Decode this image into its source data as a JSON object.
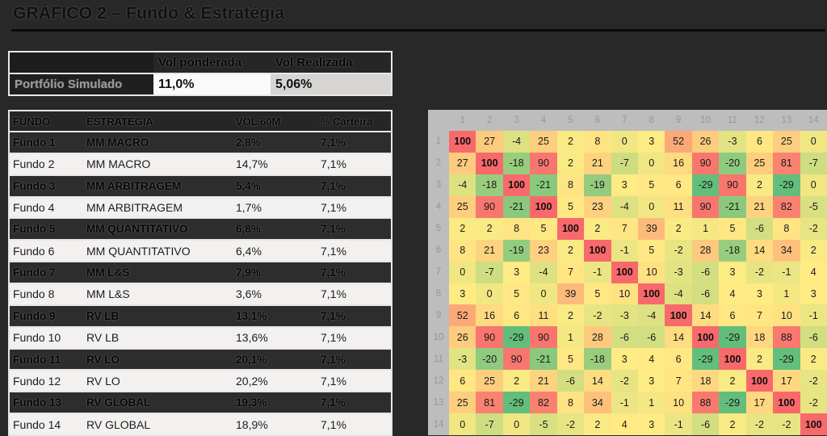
{
  "title": "GRÁFICO 2 – Fundo & Estratégia",
  "summary_table": {
    "columns": [
      "Vol ponderada",
      "Vol Realizada"
    ],
    "rows": [
      {
        "label": "Portfólio Simulado",
        "vol_ponderada": "11,0%",
        "vol_realizada": "5,06%"
      }
    ]
  },
  "funds_table": {
    "columns": [
      "FUNDO",
      "ESTRATÉGIA",
      "VOL 60M",
      "% Carteira"
    ],
    "rows": [
      {
        "fundo": "Fundo 1",
        "estrategia": "MM MACRO",
        "vol_60m": "2,8%",
        "pct_carteira": "7,1%"
      },
      {
        "fundo": "Fundo 2",
        "estrategia": "MM MACRO",
        "vol_60m": "14,7%",
        "pct_carteira": "7,1%"
      },
      {
        "fundo": "Fundo 3",
        "estrategia": "MM ARBITRAGEM",
        "vol_60m": "5,4%",
        "pct_carteira": "7,1%"
      },
      {
        "fundo": "Fundo 4",
        "estrategia": "MM ARBITRAGEM",
        "vol_60m": "1,7%",
        "pct_carteira": "7,1%"
      },
      {
        "fundo": "Fundo 5",
        "estrategia": "MM QUANTITATIVO",
        "vol_60m": "6,8%",
        "pct_carteira": "7,1%"
      },
      {
        "fundo": "Fundo 6",
        "estrategia": "MM QUANTITATIVO",
        "vol_60m": "6,4%",
        "pct_carteira": "7,1%"
      },
      {
        "fundo": "Fundo 7",
        "estrategia": "MM L&S",
        "vol_60m": "7,9%",
        "pct_carteira": "7,1%"
      },
      {
        "fundo": "Fundo 8",
        "estrategia": "MM L&S",
        "vol_60m": "3,6%",
        "pct_carteira": "7,1%"
      },
      {
        "fundo": "Fundo 9",
        "estrategia": "RV LB",
        "vol_60m": "13,1%",
        "pct_carteira": "7,1%"
      },
      {
        "fundo": "Fundo 10",
        "estrategia": "RV LB",
        "vol_60m": "13,6%",
        "pct_carteira": "7,1%"
      },
      {
        "fundo": "Fundo 11",
        "estrategia": "RV LO",
        "vol_60m": "20,1%",
        "pct_carteira": "7,1%"
      },
      {
        "fundo": "Fundo 12",
        "estrategia": "RV LO",
        "vol_60m": "20,2%",
        "pct_carteira": "7,1%"
      },
      {
        "fundo": "Fundo 13",
        "estrategia": "RV GLOBAL",
        "vol_60m": "19,3%",
        "pct_carteira": "7,1%"
      },
      {
        "fundo": "Fundo 14",
        "estrategia": "RV GLOBAL",
        "vol_60m": "18,9%",
        "pct_carteira": "7,1%"
      }
    ]
  },
  "chart_data": {
    "type": "heatmap",
    "title": "",
    "x_labels": [
      "1",
      "2",
      "3",
      "4",
      "5",
      "6",
      "7",
      "8",
      "9",
      "10",
      "11",
      "12",
      "13",
      "14"
    ],
    "y_labels": [
      "1",
      "2",
      "3",
      "4",
      "5",
      "6",
      "7",
      "8",
      "9",
      "10",
      "11",
      "12",
      "13",
      "14"
    ],
    "matrix": [
      [
        100,
        27,
        -4,
        25,
        2,
        8,
        0,
        3,
        52,
        26,
        -3,
        6,
        25,
        0
      ],
      [
        27,
        100,
        -18,
        90,
        2,
        21,
        -7,
        0,
        16,
        90,
        -20,
        25,
        81,
        -7
      ],
      [
        -4,
        -18,
        100,
        -21,
        8,
        -19,
        3,
        5,
        6,
        -29,
        90,
        2,
        -29,
        0
      ],
      [
        25,
        90,
        -21,
        100,
        5,
        23,
        -4,
        0,
        11,
        90,
        -21,
        21,
        82,
        -5
      ],
      [
        2,
        2,
        8,
        5,
        100,
        2,
        7,
        39,
        2,
        1,
        5,
        -6,
        8,
        -2
      ],
      [
        8,
        21,
        -19,
        23,
        2,
        100,
        -1,
        5,
        -2,
        28,
        -18,
        14,
        34,
        2
      ],
      [
        0,
        -7,
        3,
        -4,
        7,
        -1,
        100,
        10,
        -3,
        -6,
        3,
        -2,
        -1,
        4
      ],
      [
        3,
        0,
        5,
        0,
        39,
        5,
        10,
        100,
        -4,
        -6,
        4,
        3,
        1,
        3
      ],
      [
        52,
        16,
        6,
        11,
        2,
        -2,
        -3,
        -4,
        100,
        14,
        6,
        7,
        10,
        -1
      ],
      [
        26,
        90,
        -29,
        90,
        1,
        28,
        -6,
        -6,
        14,
        100,
        -29,
        18,
        88,
        -6
      ],
      [
        -3,
        -20,
        90,
        -21,
        5,
        -18,
        3,
        4,
        6,
        -29,
        100,
        2,
        -29,
        2
      ],
      [
        6,
        25,
        2,
        21,
        -6,
        14,
        -2,
        3,
        7,
        18,
        2,
        100,
        17,
        -2
      ],
      [
        25,
        81,
        -29,
        82,
        8,
        34,
        -1,
        1,
        10,
        88,
        -29,
        17,
        100,
        -2
      ],
      [
        0,
        -7,
        0,
        -5,
        -2,
        2,
        4,
        3,
        -1,
        -6,
        2,
        -2,
        -2,
        100
      ]
    ],
    "color_scale": {
      "min_value": -29,
      "mid_value": 3,
      "max_value": 100,
      "min_color": "#63BE7B",
      "mid_color": "#FFEB84",
      "max_color": "#F8696B",
      "header_bg": "#BDBDBD"
    },
    "legend": "off",
    "grid": "off"
  }
}
